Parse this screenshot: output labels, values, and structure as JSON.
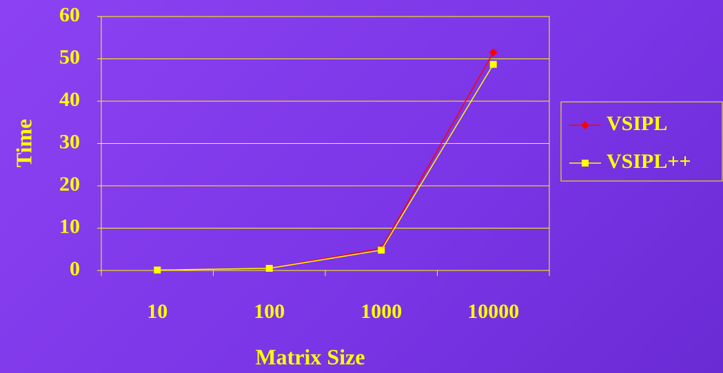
{
  "chart_data": {
    "type": "line",
    "x_label": "Matrix Size",
    "y_label": "Time",
    "categories": [
      "10",
      "100",
      "1000",
      "10000"
    ],
    "series": [
      {
        "name": "VSIPL",
        "color": "#ff0000",
        "marker": "diamond",
        "values": [
          0.1,
          0.5,
          5.2,
          51.5
        ]
      },
      {
        "name": "VSIPL++",
        "color": "#ffff00",
        "marker": "square",
        "values": [
          0.1,
          0.5,
          4.8,
          48.7
        ]
      }
    ],
    "ylim": [
      0,
      60
    ],
    "yticks": [
      0,
      10,
      20,
      30,
      40,
      50,
      60
    ],
    "grid": true,
    "legend": "right"
  }
}
